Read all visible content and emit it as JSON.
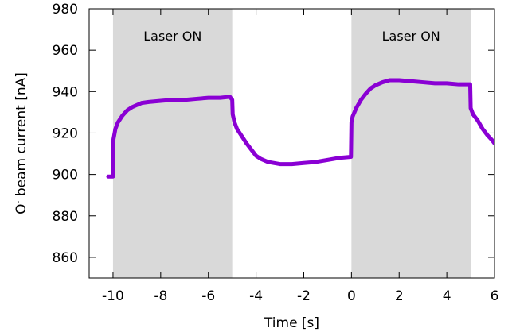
{
  "chart_data": {
    "type": "line",
    "xlabel": "Time [s]",
    "ylabel_main": "O",
    "ylabel_sup": "-",
    "ylabel_rest": " beam current [nA]",
    "xlim": [
      -11,
      6
    ],
    "ylim": [
      850,
      980
    ],
    "xticks": [
      -10,
      -8,
      -6,
      -4,
      -2,
      0,
      2,
      4,
      6
    ],
    "yticks": [
      860,
      880,
      900,
      920,
      940,
      960,
      980
    ],
    "shaded_regions": [
      {
        "label": "Laser ON",
        "x": [
          -10,
          -5
        ]
      },
      {
        "label": "Laser ON",
        "x": [
          0,
          5
        ]
      }
    ],
    "series": [
      {
        "color": "#8a00d4",
        "points": [
          [
            -10.2,
            899
          ],
          [
            -10.0,
            899
          ],
          [
            -9.98,
            917
          ],
          [
            -9.9,
            922
          ],
          [
            -9.8,
            925
          ],
          [
            -9.6,
            928.5
          ],
          [
            -9.4,
            931
          ],
          [
            -9.2,
            932.5
          ],
          [
            -9.0,
            933.5
          ],
          [
            -8.8,
            934.5
          ],
          [
            -8.5,
            935
          ],
          [
            -8.0,
            935.5
          ],
          [
            -7.5,
            936
          ],
          [
            -7.0,
            936
          ],
          [
            -6.5,
            936.5
          ],
          [
            -6.0,
            937
          ],
          [
            -5.5,
            937
          ],
          [
            -5.1,
            937.5
          ],
          [
            -5.0,
            936
          ],
          [
            -4.98,
            929
          ],
          [
            -4.9,
            925
          ],
          [
            -4.8,
            922
          ],
          [
            -4.6,
            918.5
          ],
          [
            -4.4,
            915
          ],
          [
            -4.2,
            912
          ],
          [
            -4.0,
            909
          ],
          [
            -3.8,
            907.5
          ],
          [
            -3.5,
            906
          ],
          [
            -3.0,
            905
          ],
          [
            -2.5,
            905
          ],
          [
            -2.0,
            905.5
          ],
          [
            -1.5,
            906
          ],
          [
            -1.0,
            907
          ],
          [
            -0.5,
            908
          ],
          [
            -0.02,
            908.5
          ],
          [
            0.0,
            925
          ],
          [
            0.05,
            928
          ],
          [
            0.2,
            932
          ],
          [
            0.4,
            936
          ],
          [
            0.6,
            939
          ],
          [
            0.8,
            941.5
          ],
          [
            1.0,
            943
          ],
          [
            1.3,
            944.5
          ],
          [
            1.6,
            945.5
          ],
          [
            2.0,
            945.5
          ],
          [
            2.5,
            945
          ],
          [
            3.0,
            944.5
          ],
          [
            3.5,
            944
          ],
          [
            4.0,
            944
          ],
          [
            4.5,
            943.5
          ],
          [
            4.98,
            943.5
          ],
          [
            5.0,
            932
          ],
          [
            5.1,
            929
          ],
          [
            5.3,
            926
          ],
          [
            5.5,
            922
          ],
          [
            5.7,
            919
          ],
          [
            5.9,
            916.5
          ],
          [
            6.0,
            915
          ]
        ]
      }
    ]
  }
}
